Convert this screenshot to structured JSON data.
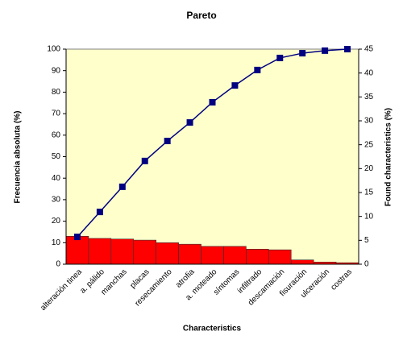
{
  "chart_data": {
    "type": "pareto",
    "title": "Pareto",
    "x_label": "Characteristics",
    "y_label": "Frecuencia absoluta (%)",
    "y2_label": "Found characteristics (%)",
    "categories": [
      "alteración tinea",
      "a. pálido",
      "manchas",
      "placas",
      "resecamiento",
      "atrofia",
      "a. moteado",
      "síntomas",
      "infiltrado",
      "descamación",
      "fisuración",
      "ulceración",
      "costras"
    ],
    "series": [
      {
        "type": "bar",
        "color": "#ff0000",
        "values": [
          13,
          12,
          11.7,
          11.2,
          10,
          9.3,
          8.3,
          8.3,
          7,
          6.7,
          2,
          1,
          0.7
        ]
      },
      {
        "type": "line",
        "color": "#000080",
        "values": [
          12.7,
          24.3,
          36,
          48,
          57.3,
          65.9,
          75.3,
          83.1,
          90.3,
          95.9,
          98.1,
          99.3,
          100
        ]
      }
    ],
    "ylim": [
      0,
      100
    ],
    "yticks": [
      0,
      10,
      20,
      30,
      40,
      50,
      60,
      70,
      80,
      90,
      100
    ],
    "y2lim": [
      0,
      45
    ],
    "y2ticks": [
      0,
      5,
      10,
      15,
      20,
      25,
      30,
      35,
      40,
      45
    ],
    "plot_background": "#ffffcc"
  }
}
